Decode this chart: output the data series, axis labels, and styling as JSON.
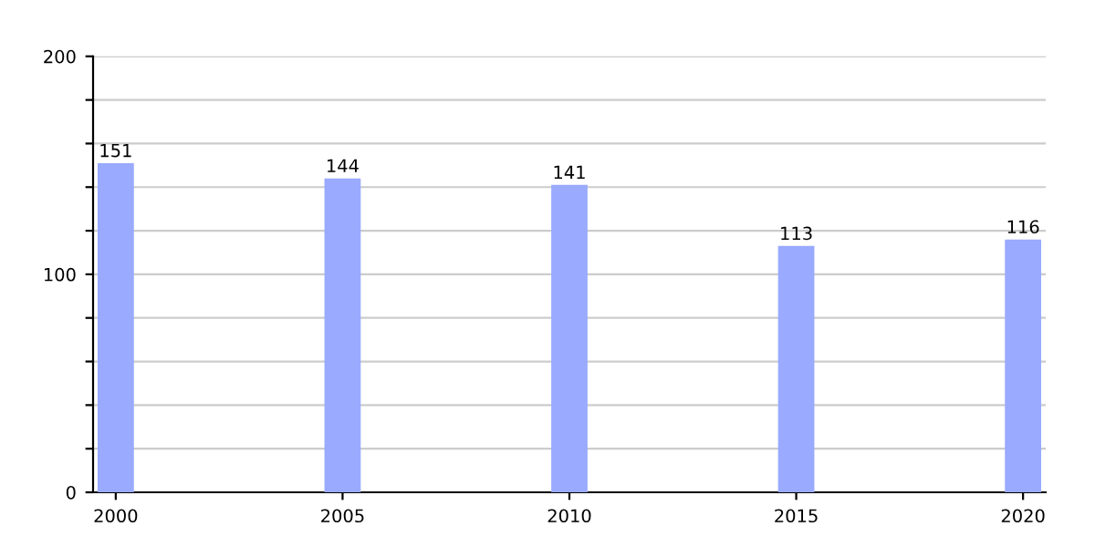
{
  "chart_data": {
    "type": "bar",
    "x": [
      2000,
      2005,
      2010,
      2015,
      2020
    ],
    "values": [
      151,
      144,
      141,
      113,
      116
    ],
    "color": "#99aaff",
    "data_labels": true,
    "xlim": [
      1999.5,
      2020.5
    ],
    "xticks": [
      2000,
      2005,
      2010,
      2015,
      2020
    ],
    "ylim": [
      0,
      200
    ],
    "yticks": [
      0,
      {
        "value": 20,
        "label": null
      },
      {
        "value": 40,
        "label": null
      },
      {
        "value": 60,
        "label": null
      },
      {
        "value": 80,
        "label": null
      },
      100,
      {
        "value": 120,
        "label": null
      },
      {
        "value": 140,
        "label": null
      },
      {
        "value": 160,
        "label": null
      },
      {
        "value": 180,
        "label": null
      },
      200
    ],
    "grid": "y"
  }
}
